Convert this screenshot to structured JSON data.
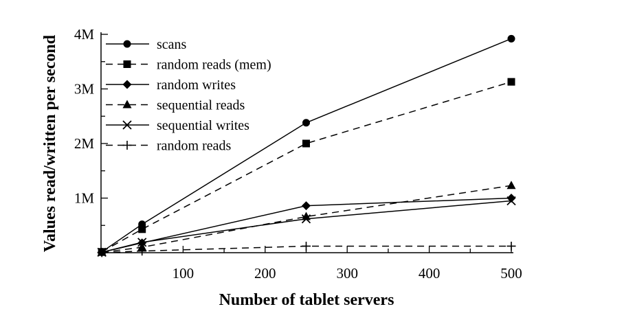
{
  "chart_data": {
    "type": "line",
    "title": "",
    "xlabel": "Number of tablet servers",
    "ylabel": "Values read/written per second",
    "xlim": [
      0,
      500
    ],
    "ylim": [
      0,
      4000000
    ],
    "x_ticks": [
      100,
      200,
      300,
      400,
      500
    ],
    "x_tick_labels": [
      "100",
      "200",
      "300",
      "400",
      "500"
    ],
    "y_ticks": [
      1000000,
      2000000,
      3000000,
      4000000
    ],
    "y_tick_labels": [
      "1M",
      "2M",
      "3M",
      "4M"
    ],
    "grid": false,
    "legend_position": "top-left",
    "x": [
      1,
      50,
      250,
      500
    ],
    "series": [
      {
        "name": "scans",
        "values": [
          15000,
          520000,
          2380000,
          3920000
        ],
        "marker": "circle",
        "dash": "solid"
      },
      {
        "name": "random reads (mem)",
        "values": [
          15000,
          430000,
          2000000,
          3130000
        ],
        "marker": "square",
        "dash": "dashed"
      },
      {
        "name": "random writes",
        "values": [
          8000,
          180000,
          860000,
          1000000
        ],
        "marker": "diamond",
        "dash": "solid"
      },
      {
        "name": "sequential reads",
        "values": [
          4000,
          100000,
          660000,
          1230000
        ],
        "marker": "triangle",
        "dash": "dashed"
      },
      {
        "name": "sequential writes",
        "values": [
          8000,
          190000,
          620000,
          950000
        ],
        "marker": "x",
        "dash": "solid"
      },
      {
        "name": "random reads",
        "values": [
          1200,
          30000,
          120000,
          120000
        ],
        "marker": "plus",
        "dash": "dashed"
      }
    ]
  }
}
